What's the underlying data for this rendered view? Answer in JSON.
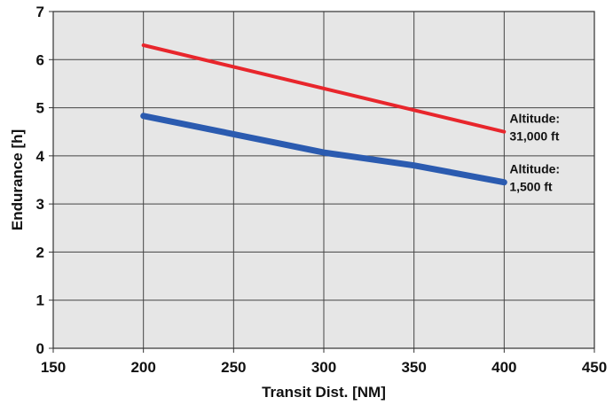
{
  "chart_data": {
    "type": "line",
    "title": "",
    "xlabel": "Transit Dist. [NM]",
    "ylabel": "Endurance [h]",
    "xlim": [
      150,
      450
    ],
    "ylim": [
      0,
      7
    ],
    "xticks": [
      "150",
      "200",
      "250",
      "300",
      "350",
      "400",
      "450"
    ],
    "yticks": [
      "0",
      "1",
      "2",
      "3",
      "4",
      "5",
      "6",
      "7"
    ],
    "grid": true,
    "legend": "none",
    "series": [
      {
        "label": [
          "Altitude:",
          "31,000 ft"
        ],
        "color": "#e8262c",
        "x": [
          200,
          400
        ],
        "y": [
          6.3,
          4.5
        ]
      },
      {
        "label": [
          "Altitude:",
          "1,500 ft"
        ],
        "color": "#2b5bb0",
        "x": [
          200,
          250,
          300,
          350,
          400
        ],
        "y": [
          4.83,
          4.45,
          4.07,
          3.8,
          3.45
        ]
      }
    ]
  }
}
